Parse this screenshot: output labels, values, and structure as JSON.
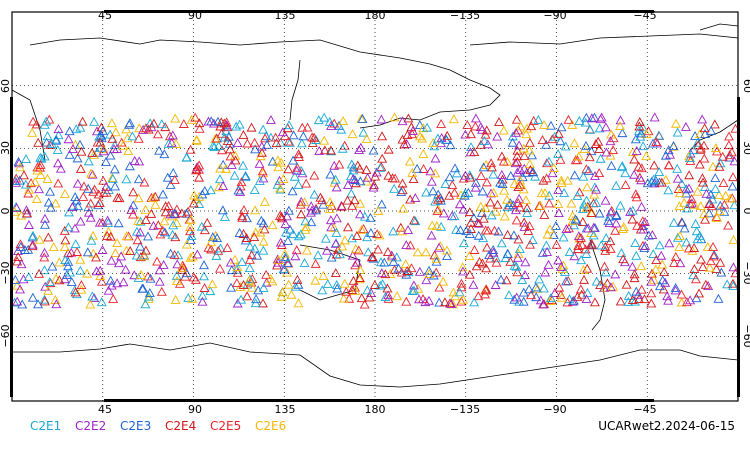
{
  "map": {
    "lon_labels": [
      "45",
      "90",
      "135",
      "180",
      "−135",
      "−90",
      "−45"
    ],
    "lat_labels_left": [
      "60",
      "30",
      "0",
      "−30",
      "−60"
    ],
    "lat_labels_right": [
      "60",
      "30",
      "0",
      "−30",
      "−60"
    ],
    "latitude_band": [
      -45,
      45
    ],
    "grid": "dotted"
  },
  "legend": [
    {
      "name": "C2E1",
      "color": "#17a9d6"
    },
    {
      "name": "C2E2",
      "color": "#a020c8"
    },
    {
      "name": "C2E3",
      "color": "#1e64d2"
    },
    {
      "name": "C2E4",
      "color": "#d01818"
    },
    {
      "name": "C2E5",
      "color": "#e8242c"
    },
    {
      "name": "C2E6",
      "color": "#f5b800"
    }
  ],
  "footer": {
    "title": "UCARwet2.2024-06-15"
  }
}
